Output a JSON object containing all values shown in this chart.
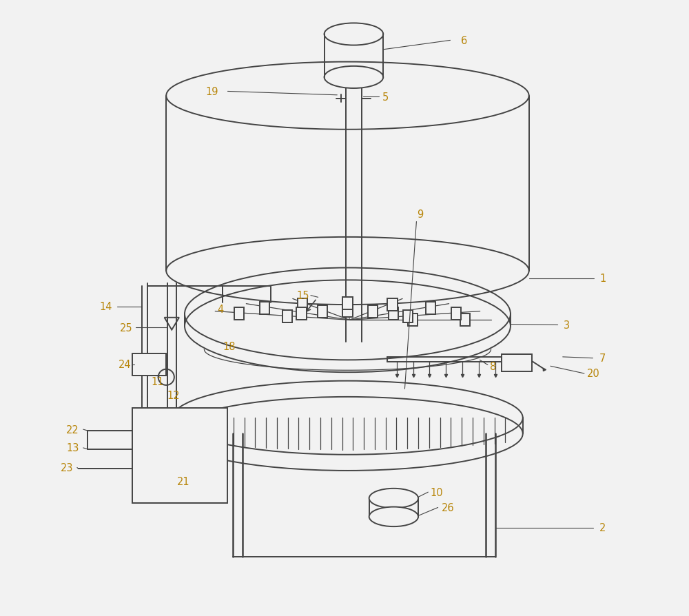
{
  "bg_color": "#f2f2f2",
  "line_color": "#444444",
  "label_color": "#b8860b",
  "fig_width": 10.0,
  "fig_height": 8.95,
  "dpi": 100
}
